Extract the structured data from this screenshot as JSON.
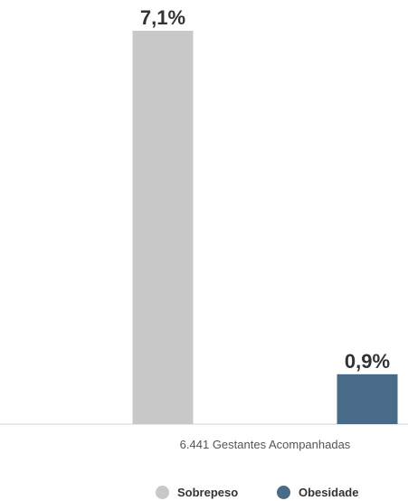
{
  "chart_data": {
    "type": "bar",
    "categories": [
      "6.441 Gestantes Acompanhadas"
    ],
    "series": [
      {
        "name": "Sobrepeso",
        "values": [
          7.1
        ],
        "labels": [
          "7,1%"
        ],
        "color": "#c8c8c8"
      },
      {
        "name": "Obesidade",
        "values": [
          0.9
        ],
        "labels": [
          "0,9%"
        ],
        "color": "#4a6b88"
      }
    ],
    "ylim": [
      0,
      7.1
    ],
    "grid": false,
    "legend": "bottom"
  }
}
